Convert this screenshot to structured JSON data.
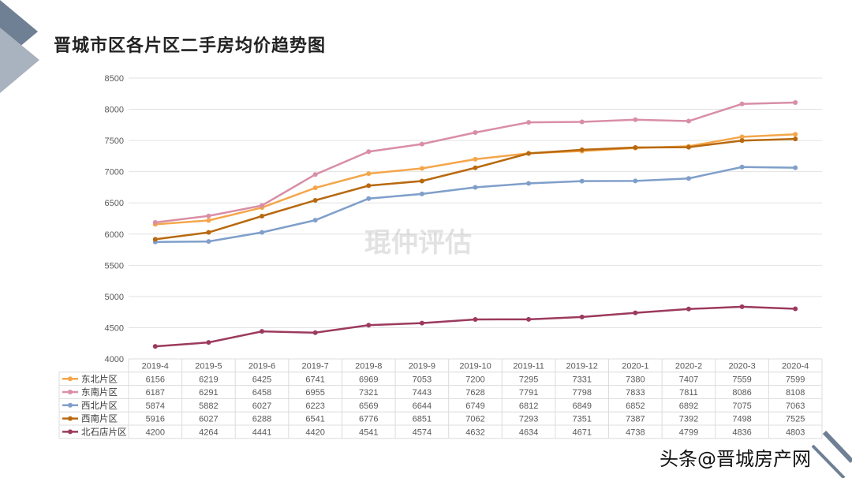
{
  "title": "晋城市区各片区二手房均价趋势图",
  "watermark": "琨仲评估",
  "credit": "头条@晋城房产网",
  "colors": {
    "东北片区": "#f4a64a",
    "东南片区": "#d98ea6",
    "西北片区": "#7f9fca",
    "西南片区": "#b8690f",
    "北石店片区": "#9c3a5e"
  },
  "chart_data": {
    "type": "line",
    "title": "晋城市区各片区二手房均价趋势图",
    "xlabel": "",
    "ylabel": "",
    "ylim": [
      4000,
      8500
    ],
    "yticks": [
      4000,
      4500,
      5000,
      5500,
      6000,
      6500,
      7000,
      7500,
      8000,
      8500
    ],
    "grid": true,
    "legend": "bottom-table",
    "categories": [
      "2019-4",
      "2019-5",
      "2019-6",
      "2019-7",
      "2019-8",
      "2019-9",
      "2019-10",
      "2019-11",
      "2019-12",
      "2020-1",
      "2020-2",
      "2020-3",
      "2020-4"
    ],
    "series": [
      {
        "name": "东北片区",
        "color": "#f4a64a",
        "values": [
          6156,
          6219,
          6425,
          6741,
          6969,
          7053,
          7200,
          7295,
          7331,
          7380,
          7407,
          7559,
          7599
        ]
      },
      {
        "name": "东南片区",
        "color": "#d98ea6",
        "values": [
          6187,
          6291,
          6458,
          6955,
          7321,
          7443,
          7628,
          7791,
          7798,
          7833,
          7811,
          8086,
          8108
        ]
      },
      {
        "name": "西北片区",
        "color": "#7f9fca",
        "values": [
          5874,
          5882,
          6027,
          6223,
          6569,
          6644,
          6749,
          6812,
          6849,
          6852,
          6892,
          7075,
          7063
        ]
      },
      {
        "name": "西南片区",
        "color": "#b8690f",
        "values": [
          5916,
          6027,
          6288,
          6541,
          6776,
          6851,
          7062,
          7293,
          7351,
          7387,
          7392,
          7498,
          7525
        ]
      },
      {
        "name": "北石店片区",
        "color": "#9c3a5e",
        "values": [
          4200,
          4264,
          4441,
          4420,
          4541,
          4574,
          4632,
          4634,
          4671,
          4738,
          4799,
          4836,
          4803
        ]
      }
    ]
  }
}
